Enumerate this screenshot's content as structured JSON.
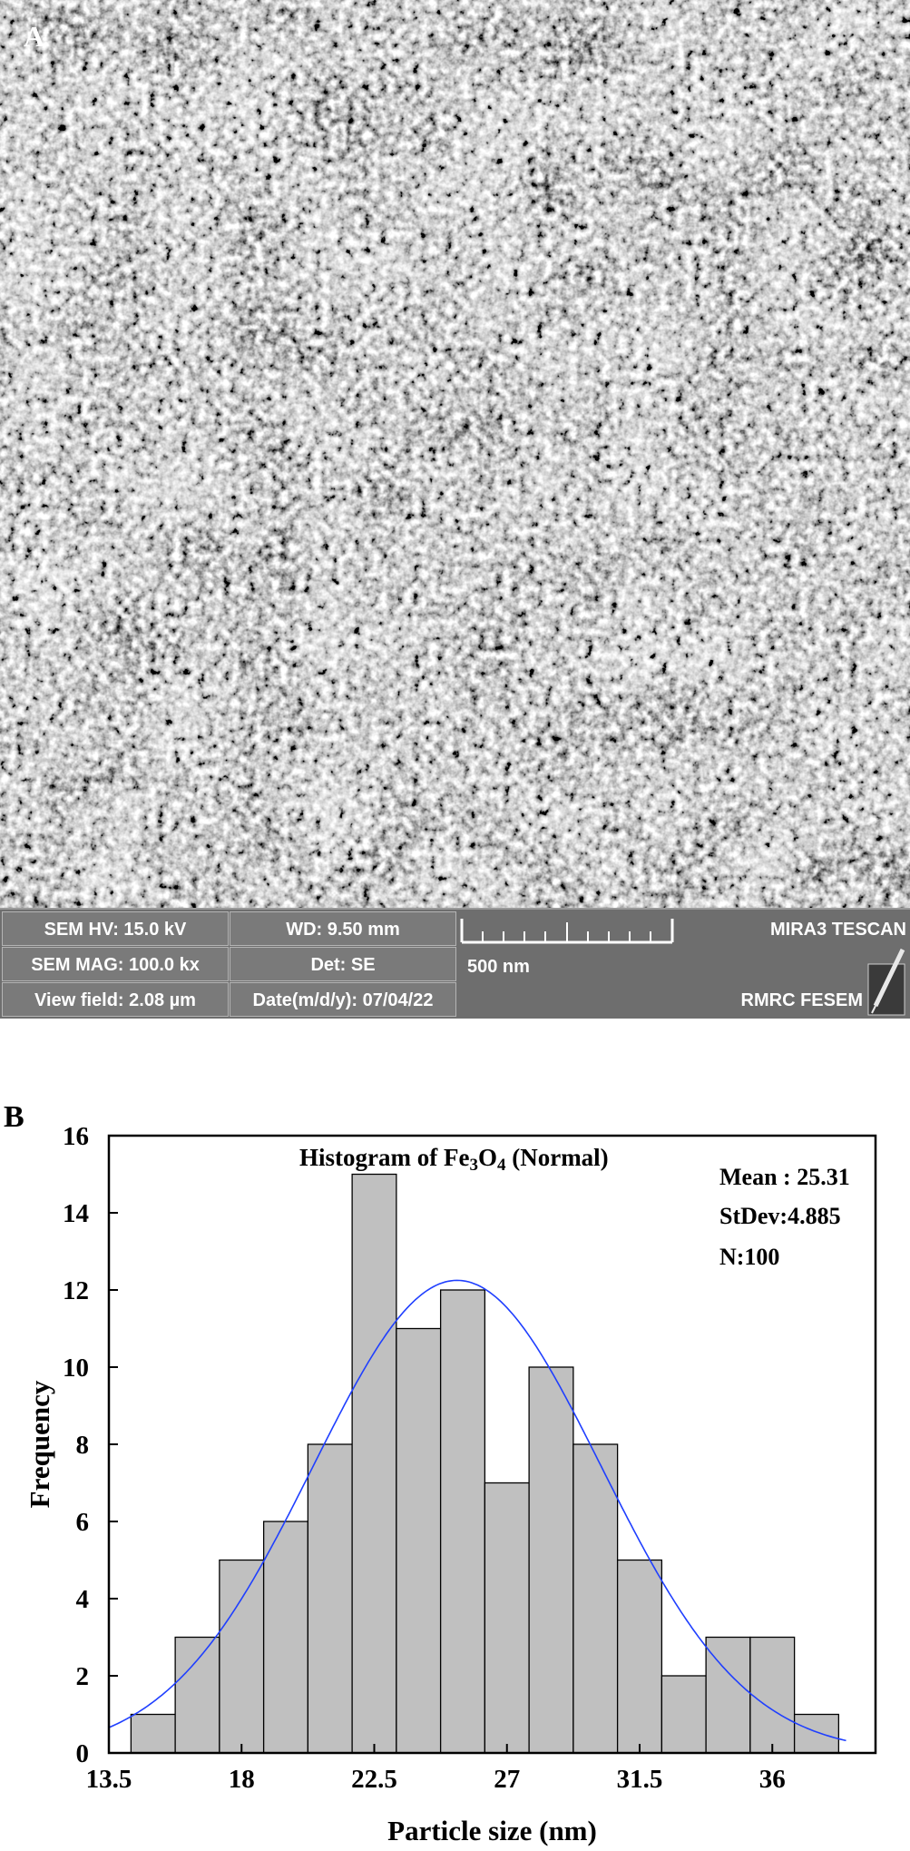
{
  "panel_a": {
    "label": "A",
    "info_bar": {
      "hv": "SEM HV: 15.0 kV",
      "wd": "WD: 9.50 mm",
      "mag": "SEM MAG: 100.0 kx",
      "det": "Det: SE",
      "view_field": "View field: 2.08 µm",
      "date": "Date(m/d/y): 07/04/22",
      "scale_bar": "500 nm",
      "brand": "MIRA3 TESCAN",
      "lab": "RMRC  FESEM"
    }
  },
  "panel_b": {
    "label": "B",
    "title_main": "Histogram of Fe",
    "title_sub1": "3",
    "title_mid": "O",
    "title_sub2": "4",
    "title_tail": " (Normal)",
    "stats": {
      "mean": "Mean : 25.31",
      "stdev": "StDev:4.885",
      "n": "N:100"
    }
  },
  "chart_data": {
    "type": "bar",
    "title": "Histogram of Fe3O4 (Normal)",
    "xlabel": "Particle size (nm)",
    "ylabel": "Frequency",
    "xlim": [
      13.5,
      39.5
    ],
    "ylim": [
      0,
      16
    ],
    "bin_width": 1.5,
    "bins_start": [
      14.25,
      15.75,
      17.25,
      18.75,
      20.25,
      21.75,
      23.25,
      24.75,
      26.25,
      27.75,
      29.25,
      30.75,
      32.25,
      33.75,
      35.25,
      36.75
    ],
    "values": [
      1,
      3,
      5,
      6,
      8,
      15,
      11,
      12,
      7,
      10,
      8,
      5,
      2,
      3,
      3,
      1
    ],
    "xticks": [
      "13.5",
      "18",
      "22.5",
      "27",
      "31.5",
      "36"
    ],
    "xtick_values": [
      13.5,
      18,
      22.5,
      27,
      31.5,
      36
    ],
    "yticks": [
      "0",
      "2",
      "4",
      "6",
      "8",
      "10",
      "12",
      "14",
      "16"
    ],
    "ytick_values": [
      0,
      2,
      4,
      6,
      8,
      10,
      12,
      14,
      16
    ],
    "normal_fit": {
      "mean": 25.31,
      "stdev": 4.885,
      "n": 100,
      "color": "#1f3fff"
    },
    "bar_color": "#c0c0c0",
    "bar_edge_color": "#000000",
    "grid": false,
    "legend": "none"
  }
}
